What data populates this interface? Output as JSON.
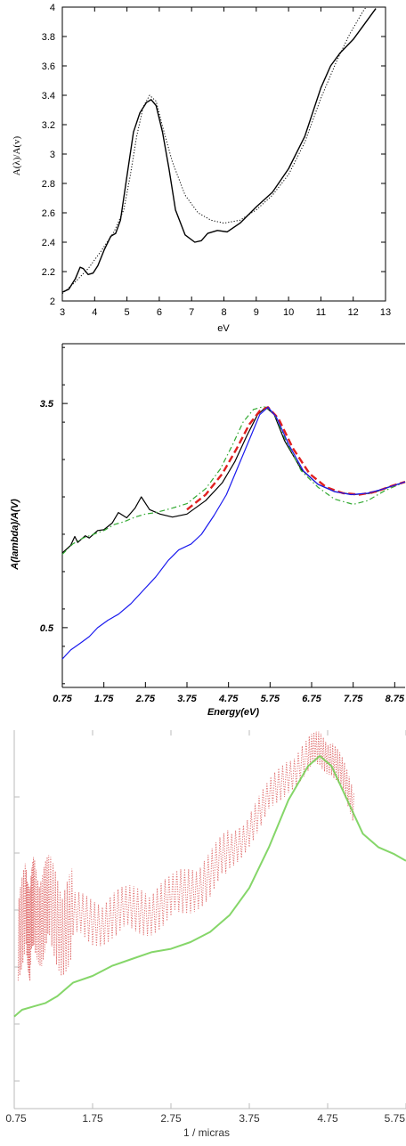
{
  "chart_data": [
    {
      "type": "line",
      "xlabel": "eV",
      "ylabel": "A(λ)/A(v)",
      "xlim": [
        3,
        13
      ],
      "ylim": [
        2,
        4
      ],
      "xticks": [
        "3",
        "4",
        "5",
        "6",
        "7",
        "8",
        "9",
        "10",
        "11",
        "12",
        "13"
      ],
      "yticks": [
        "2",
        "2.2",
        "2.4",
        "2.6",
        "2.8",
        "3",
        "3.2",
        "3.4",
        "3.6",
        "3.8",
        "4"
      ],
      "grid": false,
      "series": [
        {
          "style": "solid",
          "color": "#000000",
          "points": [
            [
              3.0,
              2.06
            ],
            [
              3.2,
              2.08
            ],
            [
              3.4,
              2.15
            ],
            [
              3.55,
              2.23
            ],
            [
              3.65,
              2.22
            ],
            [
              3.8,
              2.18
            ],
            [
              3.95,
              2.19
            ],
            [
              4.1,
              2.24
            ],
            [
              4.3,
              2.35
            ],
            [
              4.5,
              2.44
            ],
            [
              4.65,
              2.46
            ],
            [
              4.8,
              2.55
            ],
            [
              5.0,
              2.85
            ],
            [
              5.2,
              3.15
            ],
            [
              5.4,
              3.28
            ],
            [
              5.6,
              3.35
            ],
            [
              5.75,
              3.37
            ],
            [
              5.9,
              3.33
            ],
            [
              6.1,
              3.15
            ],
            [
              6.3,
              2.9
            ],
            [
              6.5,
              2.62
            ],
            [
              6.8,
              2.45
            ],
            [
              7.1,
              2.4
            ],
            [
              7.3,
              2.41
            ],
            [
              7.5,
              2.46
            ],
            [
              7.8,
              2.48
            ],
            [
              8.1,
              2.47
            ],
            [
              8.5,
              2.53
            ],
            [
              9.0,
              2.64
            ],
            [
              9.5,
              2.74
            ],
            [
              10.0,
              2.9
            ],
            [
              10.5,
              3.12
            ],
            [
              11.0,
              3.45
            ],
            [
              11.3,
              3.6
            ],
            [
              11.6,
              3.69
            ],
            [
              12.0,
              3.78
            ],
            [
              12.3,
              3.87
            ],
            [
              12.7,
              3.99
            ]
          ]
        },
        {
          "style": "dotted",
          "color": "#000000",
          "points": [
            [
              3.0,
              2.05
            ],
            [
              3.4,
              2.13
            ],
            [
              3.8,
              2.22
            ],
            [
              4.2,
              2.34
            ],
            [
              4.6,
              2.47
            ],
            [
              4.9,
              2.62
            ],
            [
              5.1,
              2.85
            ],
            [
              5.3,
              3.12
            ],
            [
              5.5,
              3.32
            ],
            [
              5.7,
              3.4
            ],
            [
              5.9,
              3.36
            ],
            [
              6.1,
              3.19
            ],
            [
              6.4,
              2.95
            ],
            [
              6.8,
              2.72
            ],
            [
              7.2,
              2.6
            ],
            [
              7.6,
              2.55
            ],
            [
              8.0,
              2.53
            ],
            [
              8.5,
              2.55
            ],
            [
              9.0,
              2.62
            ],
            [
              9.5,
              2.72
            ],
            [
              10.0,
              2.86
            ],
            [
              10.5,
              3.08
            ],
            [
              11.0,
              3.38
            ],
            [
              11.5,
              3.64
            ],
            [
              11.9,
              3.82
            ],
            [
              12.3,
              3.97
            ],
            [
              12.4,
              4.0
            ]
          ]
        }
      ]
    },
    {
      "type": "line",
      "xlabel": "Energy(eV)",
      "ylabel": "A(lambda)/A(V)",
      "xlim": [
        0.75,
        9.0
      ],
      "ylim": [
        -0.3,
        4.3
      ],
      "xticks": [
        "0.75",
        "1.75",
        "2.75",
        "3.75",
        "4.75",
        "5.75",
        "6.75",
        "7.75",
        "8.75"
      ],
      "yticks": [
        "0.5",
        "3.5"
      ],
      "grid": false,
      "series": [
        {
          "style": "solid",
          "color": "#000000",
          "points": [
            [
              0.75,
              1.5
            ],
            [
              0.95,
              1.6
            ],
            [
              1.05,
              1.72
            ],
            [
              1.12,
              1.64
            ],
            [
              1.3,
              1.73
            ],
            [
              1.4,
              1.7
            ],
            [
              1.5,
              1.75
            ],
            [
              1.6,
              1.8
            ],
            [
              1.75,
              1.81
            ],
            [
              1.95,
              1.9
            ],
            [
              2.1,
              2.04
            ],
            [
              2.3,
              1.97
            ],
            [
              2.5,
              2.1
            ],
            [
              2.65,
              2.25
            ],
            [
              2.85,
              2.08
            ],
            [
              3.1,
              2.02
            ],
            [
              3.4,
              1.98
            ],
            [
              3.75,
              2.02
            ],
            [
              4.2,
              2.2
            ],
            [
              4.6,
              2.44
            ],
            [
              4.9,
              2.72
            ],
            [
              5.2,
              3.08
            ],
            [
              5.45,
              3.35
            ],
            [
              5.65,
              3.45
            ],
            [
              5.85,
              3.35
            ],
            [
              6.1,
              3.0
            ],
            [
              6.5,
              2.62
            ],
            [
              6.9,
              2.42
            ],
            [
              7.3,
              2.32
            ],
            [
              7.75,
              2.28
            ],
            [
              8.2,
              2.3
            ],
            [
              8.6,
              2.38
            ],
            [
              9.0,
              2.45
            ]
          ]
        },
        {
          "style": "dashdot",
          "color": "#33aa33",
          "points": [
            [
              0.75,
              1.48
            ],
            [
              1.0,
              1.62
            ],
            [
              1.25,
              1.7
            ],
            [
              1.5,
              1.75
            ],
            [
              1.75,
              1.8
            ],
            [
              2.0,
              1.88
            ],
            [
              2.25,
              1.92
            ],
            [
              2.5,
              1.98
            ],
            [
              2.75,
              2.02
            ],
            [
              3.0,
              2.04
            ],
            [
              3.4,
              2.1
            ],
            [
              3.75,
              2.16
            ],
            [
              4.2,
              2.36
            ],
            [
              4.55,
              2.62
            ],
            [
              4.85,
              2.95
            ],
            [
              5.1,
              3.25
            ],
            [
              5.35,
              3.42
            ],
            [
              5.6,
              3.46
            ],
            [
              5.85,
              3.36
            ],
            [
              6.15,
              2.98
            ],
            [
              6.5,
              2.6
            ],
            [
              6.9,
              2.38
            ],
            [
              7.3,
              2.22
            ],
            [
              7.75,
              2.15
            ],
            [
              8.1,
              2.2
            ],
            [
              8.5,
              2.33
            ],
            [
              9.0,
              2.45
            ]
          ]
        },
        {
          "style": "dashed",
          "color": "#e02020",
          "points": [
            [
              3.75,
              2.08
            ],
            [
              4.2,
              2.28
            ],
            [
              4.6,
              2.56
            ],
            [
              4.95,
              2.9
            ],
            [
              5.25,
              3.22
            ],
            [
              5.5,
              3.4
            ],
            [
              5.7,
              3.45
            ],
            [
              5.95,
              3.3
            ],
            [
              6.3,
              2.9
            ],
            [
              6.7,
              2.56
            ],
            [
              7.1,
              2.38
            ],
            [
              7.5,
              2.3
            ],
            [
              7.9,
              2.28
            ],
            [
              8.3,
              2.32
            ],
            [
              8.7,
              2.4
            ],
            [
              9.0,
              2.45
            ]
          ]
        },
        {
          "style": "solid",
          "color": "#1a1aee",
          "points": [
            [
              0.75,
              0.08
            ],
            [
              0.95,
              0.2
            ],
            [
              1.2,
              0.3
            ],
            [
              1.4,
              0.38
            ],
            [
              1.6,
              0.5
            ],
            [
              1.85,
              0.6
            ],
            [
              2.1,
              0.68
            ],
            [
              2.4,
              0.82
            ],
            [
              2.7,
              1.0
            ],
            [
              3.0,
              1.18
            ],
            [
              3.3,
              1.4
            ],
            [
              3.55,
              1.54
            ],
            [
              3.85,
              1.62
            ],
            [
              4.1,
              1.75
            ],
            [
              4.4,
              2.0
            ],
            [
              4.7,
              2.28
            ],
            [
              5.0,
              2.68
            ],
            [
              5.3,
              3.08
            ],
            [
              5.5,
              3.35
            ],
            [
              5.7,
              3.45
            ],
            [
              5.9,
              3.32
            ],
            [
              6.2,
              2.95
            ],
            [
              6.55,
              2.6
            ],
            [
              6.9,
              2.42
            ],
            [
              7.3,
              2.32
            ],
            [
              7.7,
              2.28
            ],
            [
              8.1,
              2.3
            ],
            [
              8.5,
              2.36
            ],
            [
              9.0,
              2.45
            ]
          ]
        }
      ]
    },
    {
      "type": "line",
      "xlabel": "1 / micras",
      "ylabel": "",
      "xlim": [
        0.75,
        5.75
      ],
      "xticks": [
        "0.75",
        "1.75",
        "2.75",
        "3.75",
        "4.75",
        "5.75"
      ],
      "yticks": [],
      "grid": false,
      "series": [
        {
          "style": "dotted-noisy",
          "color": "#e07070",
          "points": [
            [
              0.8,
              0.35
            ],
            [
              0.9,
              0.55
            ],
            [
              0.95,
              0.4
            ],
            [
              1.0,
              0.52
            ],
            [
              1.1,
              0.48
            ],
            [
              1.2,
              0.5
            ],
            [
              1.35,
              0.46
            ],
            [
              1.5,
              0.47
            ],
            [
              1.75,
              0.46
            ],
            [
              2.0,
              0.48
            ],
            [
              2.25,
              0.49
            ],
            [
              2.5,
              0.5
            ],
            [
              2.75,
              0.52
            ],
            [
              3.0,
              0.56
            ],
            [
              3.25,
              0.6
            ],
            [
              3.5,
              0.66
            ],
            [
              3.75,
              0.74
            ],
            [
              4.0,
              0.82
            ],
            [
              4.25,
              0.9
            ],
            [
              4.5,
              0.95
            ],
            [
              4.65,
              0.97
            ],
            [
              4.8,
              0.95
            ],
            [
              4.95,
              0.88
            ],
            [
              5.1,
              0.8
            ]
          ]
        },
        {
          "style": "solid",
          "color": "#66cc44",
          "points": [
            [
              0.75,
              0.18
            ],
            [
              0.85,
              0.2
            ],
            [
              1.0,
              0.21
            ],
            [
              1.15,
              0.22
            ],
            [
              1.3,
              0.24
            ],
            [
              1.5,
              0.28
            ],
            [
              1.75,
              0.3
            ],
            [
              2.0,
              0.33
            ],
            [
              2.25,
              0.35
            ],
            [
              2.5,
              0.37
            ],
            [
              2.75,
              0.38
            ],
            [
              3.0,
              0.4
            ],
            [
              3.25,
              0.43
            ],
            [
              3.5,
              0.48
            ],
            [
              3.75,
              0.56
            ],
            [
              4.0,
              0.68
            ],
            [
              4.25,
              0.82
            ],
            [
              4.5,
              0.92
            ],
            [
              4.65,
              0.95
            ],
            [
              4.8,
              0.92
            ],
            [
              5.0,
              0.82
            ],
            [
              5.2,
              0.72
            ],
            [
              5.4,
              0.68
            ],
            [
              5.6,
              0.66
            ],
            [
              5.75,
              0.64
            ]
          ]
        }
      ]
    }
  ]
}
